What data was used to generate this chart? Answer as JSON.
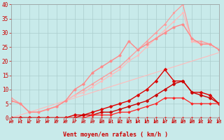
{
  "title": "",
  "xlabel": "Vent moyen/en rafales ( km/h )",
  "ylabel": "",
  "bg_color": "#c8eaea",
  "grid_color": "#aacccc",
  "xlim": [
    0,
    23
  ],
  "ylim": [
    0,
    40
  ],
  "xticks": [
    0,
    1,
    2,
    3,
    4,
    5,
    6,
    7,
    8,
    9,
    10,
    11,
    12,
    13,
    14,
    15,
    16,
    17,
    18,
    19,
    20,
    21,
    22,
    23
  ],
  "yticks": [
    0,
    5,
    10,
    15,
    20,
    25,
    30,
    35,
    40
  ],
  "lines": [
    {
      "x": [
        0,
        1,
        2,
        3,
        4,
        5,
        6,
        7,
        8,
        9,
        10,
        11,
        12,
        13,
        14,
        15,
        16,
        17,
        18,
        19,
        20,
        21,
        22,
        23
      ],
      "y": [
        0,
        1,
        2,
        3,
        4,
        5,
        6,
        7,
        8,
        9,
        10,
        11,
        12,
        13,
        14,
        15,
        16,
        17,
        18,
        19,
        20,
        21,
        22,
        23
      ],
      "color": "#ffbbbb",
      "lw": 0.8,
      "marker": null,
      "ms": 0
    },
    {
      "x": [
        0,
        1,
        2,
        3,
        4,
        5,
        6,
        7,
        8,
        9,
        10,
        11,
        12,
        13,
        14,
        15,
        16,
        17,
        18,
        19,
        20,
        21,
        22,
        23
      ],
      "y": [
        7,
        5,
        2,
        2,
        3,
        4,
        6,
        8,
        10,
        12,
        14,
        16,
        18,
        21,
        24,
        27,
        30,
        33,
        37,
        40,
        27,
        27,
        26,
        24
      ],
      "color": "#ff9999",
      "lw": 0.9,
      "marker": "o",
      "ms": 2.0
    },
    {
      "x": [
        0,
        1,
        2,
        3,
        4,
        5,
        6,
        7,
        8,
        9,
        10,
        11,
        12,
        13,
        14,
        15,
        16,
        17,
        18,
        19,
        20,
        21,
        22,
        23
      ],
      "y": [
        6,
        5,
        2,
        2,
        3,
        4,
        6,
        8,
        9,
        11,
        13,
        15,
        17,
        20,
        22,
        25,
        28,
        31,
        34,
        37,
        27,
        26,
        26,
        24
      ],
      "color": "#ffbbbb",
      "lw": 0.9,
      "marker": "o",
      "ms": 2.0
    },
    {
      "x": [
        0,
        1,
        2,
        3,
        4,
        5,
        6,
        7,
        8,
        9,
        10,
        11,
        12,
        13,
        14,
        15,
        16,
        17,
        18,
        19,
        20,
        21,
        22,
        23
      ],
      "y": [
        6,
        5,
        2,
        2,
        3,
        4,
        6,
        10,
        12,
        16,
        18,
        20,
        22,
        27,
        24,
        26,
        28,
        30,
        32,
        33,
        28,
        26,
        26,
        24
      ],
      "color": "#ff8888",
      "lw": 1.0,
      "marker": "o",
      "ms": 2.5
    },
    {
      "x": [
        0,
        1,
        2,
        3,
        4,
        5,
        6,
        7,
        8,
        9,
        10,
        11,
        12,
        13,
        14,
        15,
        16,
        17,
        18,
        19,
        20,
        21,
        22,
        23
      ],
      "y": [
        0,
        0,
        0,
        0,
        0,
        0,
        0,
        1,
        1,
        2,
        3,
        4,
        5,
        6,
        8,
        10,
        13,
        17,
        13,
        13,
        9,
        9,
        8,
        5
      ],
      "color": "#dd0000",
      "lw": 1.0,
      "marker": "D",
      "ms": 2.5
    },
    {
      "x": [
        0,
        1,
        2,
        3,
        4,
        5,
        6,
        7,
        8,
        9,
        10,
        11,
        12,
        13,
        14,
        15,
        16,
        17,
        18,
        19,
        20,
        21,
        22,
        23
      ],
      "y": [
        0,
        0,
        0,
        0,
        0,
        0,
        0,
        0,
        1,
        1,
        2,
        2,
        3,
        4,
        5,
        6,
        8,
        10,
        12,
        13,
        9,
        8,
        7,
        5
      ],
      "color": "#cc0000",
      "lw": 1.0,
      "marker": "D",
      "ms": 2.5
    },
    {
      "x": [
        0,
        1,
        2,
        3,
        4,
        5,
        6,
        7,
        8,
        9,
        10,
        11,
        12,
        13,
        14,
        15,
        16,
        17,
        18,
        19,
        20,
        21,
        22,
        23
      ],
      "y": [
        0,
        0,
        0,
        0,
        0,
        0,
        0,
        0,
        0,
        1,
        1,
        1,
        2,
        2,
        3,
        4,
        5,
        7,
        7,
        7,
        5,
        5,
        5,
        5
      ],
      "color": "#ff2222",
      "lw": 0.9,
      "marker": "D",
      "ms": 2.0
    },
    {
      "x": [
        0,
        1,
        2,
        3,
        4,
        5,
        6,
        7,
        8,
        9,
        10,
        11,
        12,
        13,
        14,
        15,
        16,
        17,
        18,
        19,
        20,
        21,
        22,
        23
      ],
      "y": [
        0,
        0,
        0,
        0,
        0,
        0,
        0,
        0,
        0,
        0,
        0,
        0,
        0,
        0,
        0,
        0,
        0,
        0,
        0,
        0,
        0,
        0,
        0,
        0
      ],
      "color": "#ff0000",
      "lw": 0.9,
      "marker": "D",
      "ms": 1.5
    }
  ],
  "arrow_color": "#cc0000"
}
